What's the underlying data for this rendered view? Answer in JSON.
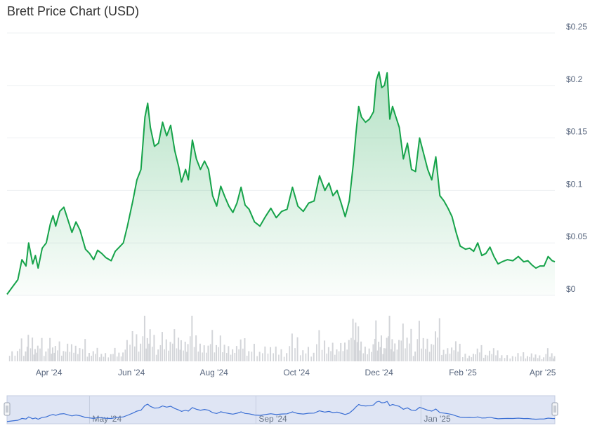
{
  "chart_data": {
    "type": "area",
    "title": "Brett Price Chart (USD)",
    "currency": "USD",
    "accent_color": "#16a34a",
    "volume_color": "#d3d5d9",
    "navigator_color": "#3b6fd4",
    "y_axis": {
      "position": "right",
      "ylim": [
        0,
        0.25
      ],
      "ticks": [
        {
          "value": 0,
          "label": "$0"
        },
        {
          "value": 0.05,
          "label": "$0.05"
        },
        {
          "value": 0.1,
          "label": "$0.1"
        },
        {
          "value": 0.15,
          "label": "$0.15"
        },
        {
          "value": 0.2,
          "label": "$0.2"
        },
        {
          "value": 0.25,
          "label": "$0.25"
        }
      ]
    },
    "x_axis": {
      "range": [
        "2024-03-01",
        "2025-04-10"
      ],
      "ticks": [
        {
          "date": "2024-04-01",
          "label": "Apr '24"
        },
        {
          "date": "2024-06-01",
          "label": "Jun '24"
        },
        {
          "date": "2024-08-01",
          "label": "Aug '24"
        },
        {
          "date": "2024-10-01",
          "label": "Oct '24"
        },
        {
          "date": "2024-12-01",
          "label": "Dec '24"
        },
        {
          "date": "2025-02-01",
          "label": "Feb '25"
        },
        {
          "date": "2025-04-01",
          "label": "Apr '25"
        }
      ]
    },
    "navigator_ticks": [
      {
        "date": "2024-05-01",
        "label": "May '24"
      },
      {
        "date": "2024-09-01",
        "label": "Sep '24"
      },
      {
        "date": "2025-01-01",
        "label": "Jan '25"
      }
    ],
    "grid": true,
    "series": [
      {
        "values": [
          [
            "2024-03-01",
            0.001
          ],
          [
            "2024-03-05",
            0.008
          ],
          [
            "2024-03-09",
            0.015
          ],
          [
            "2024-03-12",
            0.034
          ],
          [
            "2024-03-15",
            0.028
          ],
          [
            "2024-03-17",
            0.05
          ],
          [
            "2024-03-20",
            0.03
          ],
          [
            "2024-03-22",
            0.038
          ],
          [
            "2024-03-24",
            0.026
          ],
          [
            "2024-03-27",
            0.045
          ],
          [
            "2024-03-30",
            0.05
          ],
          [
            "2024-04-02",
            0.068
          ],
          [
            "2024-04-04",
            0.076
          ],
          [
            "2024-04-06",
            0.066
          ],
          [
            "2024-04-09",
            0.08
          ],
          [
            "2024-04-12",
            0.084
          ],
          [
            "2024-04-15",
            0.072
          ],
          [
            "2024-04-18",
            0.06
          ],
          [
            "2024-04-21",
            0.07
          ],
          [
            "2024-04-24",
            0.062
          ],
          [
            "2024-04-28",
            0.044
          ],
          [
            "2024-05-01",
            0.04
          ],
          [
            "2024-05-04",
            0.034
          ],
          [
            "2024-05-07",
            0.043
          ],
          [
            "2024-05-10",
            0.04
          ],
          [
            "2024-05-13",
            0.036
          ],
          [
            "2024-05-17",
            0.033
          ],
          [
            "2024-05-20",
            0.042
          ],
          [
            "2024-05-23",
            0.046
          ],
          [
            "2024-05-26",
            0.05
          ],
          [
            "2024-05-29",
            0.066
          ],
          [
            "2024-06-02",
            0.09
          ],
          [
            "2024-06-05",
            0.11
          ],
          [
            "2024-06-08",
            0.12
          ],
          [
            "2024-06-11",
            0.17
          ],
          [
            "2024-06-13",
            0.183
          ],
          [
            "2024-06-15",
            0.16
          ],
          [
            "2024-06-18",
            0.142
          ],
          [
            "2024-06-21",
            0.145
          ],
          [
            "2024-06-24",
            0.165
          ],
          [
            "2024-06-27",
            0.152
          ],
          [
            "2024-06-30",
            0.162
          ],
          [
            "2024-07-03",
            0.138
          ],
          [
            "2024-07-06",
            0.122
          ],
          [
            "2024-07-08",
            0.108
          ],
          [
            "2024-07-11",
            0.12
          ],
          [
            "2024-07-13",
            0.11
          ],
          [
            "2024-07-16",
            0.148
          ],
          [
            "2024-07-19",
            0.13
          ],
          [
            "2024-07-22",
            0.12
          ],
          [
            "2024-07-25",
            0.128
          ],
          [
            "2024-07-28",
            0.12
          ],
          [
            "2024-07-31",
            0.095
          ],
          [
            "2024-08-03",
            0.085
          ],
          [
            "2024-08-06",
            0.104
          ],
          [
            "2024-08-09",
            0.094
          ],
          [
            "2024-08-12",
            0.085
          ],
          [
            "2024-08-15",
            0.079
          ],
          [
            "2024-08-18",
            0.088
          ],
          [
            "2024-08-21",
            0.103
          ],
          [
            "2024-08-24",
            0.086
          ],
          [
            "2024-08-27",
            0.082
          ],
          [
            "2024-08-31",
            0.07
          ],
          [
            "2024-09-04",
            0.066
          ],
          [
            "2024-09-08",
            0.075
          ],
          [
            "2024-09-12",
            0.083
          ],
          [
            "2024-09-16",
            0.074
          ],
          [
            "2024-09-20",
            0.08
          ],
          [
            "2024-09-24",
            0.082
          ],
          [
            "2024-09-28",
            0.103
          ],
          [
            "2024-10-02",
            0.085
          ],
          [
            "2024-10-06",
            0.08
          ],
          [
            "2024-10-10",
            0.088
          ],
          [
            "2024-10-14",
            0.09
          ],
          [
            "2024-10-18",
            0.114
          ],
          [
            "2024-10-22",
            0.1
          ],
          [
            "2024-10-25",
            0.107
          ],
          [
            "2024-10-28",
            0.095
          ],
          [
            "2024-10-31",
            0.1
          ],
          [
            "2024-11-03",
            0.088
          ],
          [
            "2024-11-06",
            0.075
          ],
          [
            "2024-11-09",
            0.09
          ],
          [
            "2024-11-12",
            0.125
          ],
          [
            "2024-11-14",
            0.155
          ],
          [
            "2024-11-16",
            0.18
          ],
          [
            "2024-11-18",
            0.17
          ],
          [
            "2024-11-21",
            0.165
          ],
          [
            "2024-11-24",
            0.168
          ],
          [
            "2024-11-27",
            0.175
          ],
          [
            "2024-11-29",
            0.205
          ],
          [
            "2024-12-01",
            0.213
          ],
          [
            "2024-12-03",
            0.198
          ],
          [
            "2024-12-05",
            0.2
          ],
          [
            "2024-12-07",
            0.212
          ],
          [
            "2024-12-09",
            0.168
          ],
          [
            "2024-12-11",
            0.18
          ],
          [
            "2024-12-13",
            0.172
          ],
          [
            "2024-12-16",
            0.16
          ],
          [
            "2024-12-19",
            0.13
          ],
          [
            "2024-12-22",
            0.145
          ],
          [
            "2024-12-25",
            0.12
          ],
          [
            "2024-12-28",
            0.118
          ],
          [
            "2024-12-31",
            0.15
          ],
          [
            "2025-01-03",
            0.135
          ],
          [
            "2025-01-06",
            0.12
          ],
          [
            "2025-01-09",
            0.11
          ],
          [
            "2025-01-12",
            0.132
          ],
          [
            "2025-01-15",
            0.095
          ],
          [
            "2025-01-18",
            0.09
          ],
          [
            "2025-01-21",
            0.083
          ],
          [
            "2025-01-24",
            0.075
          ],
          [
            "2025-01-27",
            0.06
          ],
          [
            "2025-01-30",
            0.047
          ],
          [
            "2025-02-03",
            0.044
          ],
          [
            "2025-02-06",
            0.045
          ],
          [
            "2025-02-09",
            0.042
          ],
          [
            "2025-02-12",
            0.05
          ],
          [
            "2025-02-15",
            0.038
          ],
          [
            "2025-02-18",
            0.04
          ],
          [
            "2025-02-21",
            0.046
          ],
          [
            "2025-02-24",
            0.037
          ],
          [
            "2025-02-27",
            0.03
          ],
          [
            "2025-03-02",
            0.032
          ],
          [
            "2025-03-06",
            0.034
          ],
          [
            "2025-03-10",
            0.033
          ],
          [
            "2025-03-14",
            0.037
          ],
          [
            "2025-03-18",
            0.032
          ],
          [
            "2025-03-21",
            0.033
          ],
          [
            "2025-03-24",
            0.029
          ],
          [
            "2025-03-27",
            0.026
          ],
          [
            "2025-03-30",
            0.028
          ],
          [
            "2025-04-02",
            0.028
          ],
          [
            "2025-04-05",
            0.037
          ],
          [
            "2025-04-08",
            0.033
          ],
          [
            "2025-04-10",
            0.032
          ]
        ]
      }
    ]
  }
}
